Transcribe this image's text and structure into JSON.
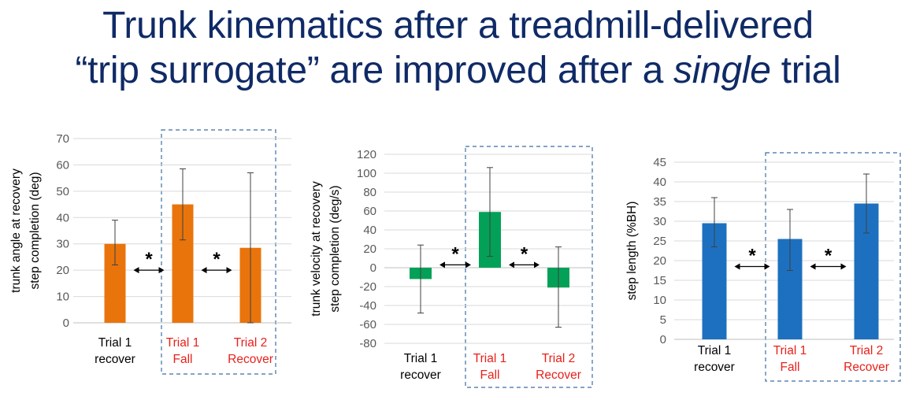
{
  "title": {
    "line1": "Trunk kinematics after a treadmill-delivered",
    "line2_pre": "“trip surrogate” are improved after a ",
    "line2_em": "single",
    "line2_post": " trial"
  },
  "colors": {
    "title": "#0f2a66",
    "red_label": "#e8201a",
    "dashed_box": "#3a6ea8"
  },
  "chart_data": [
    {
      "type": "bar",
      "ylabel": [
        "trunk angle at recovery",
        "step completion (deg)"
      ],
      "ylim": [
        0,
        70
      ],
      "yticks": [
        0,
        10,
        20,
        30,
        40,
        50,
        60,
        70
      ],
      "grid": true,
      "color": "#e9740c",
      "categories": [
        {
          "lines": [
            "Trial 1",
            "recover"
          ],
          "color": "#000000"
        },
        {
          "lines": [
            "Trial 1",
            "Fall"
          ],
          "color": "#e8201a"
        },
        {
          "lines": [
            "Trial 2",
            "Recover"
          ],
          "color": "#e8201a"
        }
      ],
      "values": [
        30,
        45,
        28.5
      ],
      "error_low": [
        22,
        31.5,
        0
      ],
      "error_high": [
        39,
        58.5,
        57
      ],
      "annotations": [
        {
          "text": "*",
          "between": [
            0,
            1
          ]
        },
        {
          "text": "*",
          "between": [
            1,
            2
          ]
        }
      ],
      "highlight": "categories 2-3 in dashed box"
    },
    {
      "type": "bar",
      "ylabel": [
        "trunk velocity  at recovery",
        "step completion (deg/s)"
      ],
      "ylim": [
        -80,
        120
      ],
      "yticks": [
        -80,
        -60,
        -40,
        -20,
        0,
        20,
        40,
        60,
        80,
        100,
        120
      ],
      "grid": true,
      "color": "#03a157",
      "categories": [
        {
          "lines": [
            "Trial 1",
            "recover"
          ],
          "color": "#000000"
        },
        {
          "lines": [
            "Trial 1",
            "Fall"
          ],
          "color": "#e8201a"
        },
        {
          "lines": [
            "Trial 2",
            "Recover"
          ],
          "color": "#e8201a"
        }
      ],
      "values": [
        -12,
        59,
        -21
      ],
      "error_low": [
        -48,
        12,
        -63
      ],
      "error_high": [
        24,
        106,
        22
      ],
      "annotations": [
        {
          "text": "*",
          "between": [
            0,
            1
          ]
        },
        {
          "text": "*",
          "between": [
            1,
            2
          ]
        }
      ],
      "highlight": "categories 2-3 in dashed box"
    },
    {
      "type": "bar",
      "ylabel": [
        "step length (%BH)"
      ],
      "ylim": [
        0,
        45
      ],
      "yticks": [
        0,
        5,
        10,
        15,
        20,
        25,
        30,
        35,
        40,
        45
      ],
      "grid": true,
      "color": "#1d70bf",
      "categories": [
        {
          "lines": [
            "Trial 1",
            "recover"
          ],
          "color": "#000000"
        },
        {
          "lines": [
            "Trial 1",
            "Fall"
          ],
          "color": "#e8201a"
        },
        {
          "lines": [
            "Trial 2",
            "Recover"
          ],
          "color": "#e8201a"
        }
      ],
      "values": [
        29.5,
        25.5,
        34.5
      ],
      "error_low": [
        23.5,
        17.5,
        27
      ],
      "error_high": [
        36,
        33,
        42
      ],
      "annotations": [
        {
          "text": "*",
          "between": [
            0,
            1
          ]
        },
        {
          "text": "*",
          "between": [
            1,
            2
          ]
        }
      ],
      "highlight": "categories 2-3 in dashed box"
    }
  ]
}
